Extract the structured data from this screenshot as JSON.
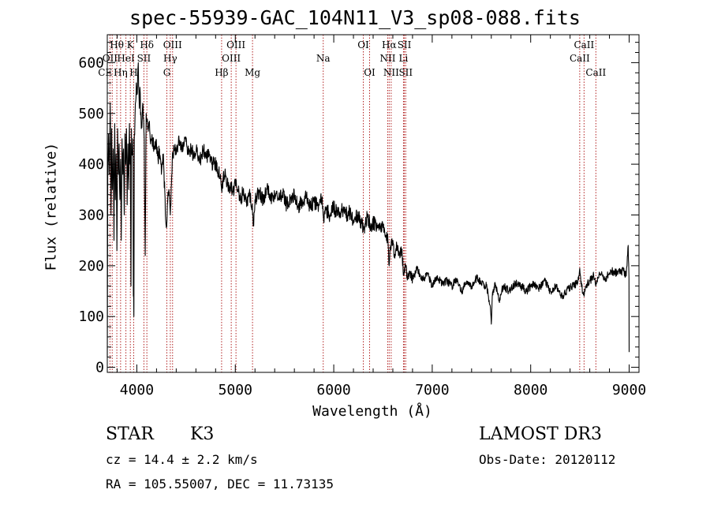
{
  "chart_data": {
    "type": "line",
    "title": "spec-55939-GAC_104N11_V3_sp08-088.fits",
    "xlabel": "Wavelength (Å)",
    "ylabel": "Flux (relative)",
    "xlim": [
      3700,
      9100
    ],
    "ylim": [
      -10,
      655
    ],
    "xticks": [
      4000,
      5000,
      6000,
      7000,
      8000,
      9000
    ],
    "yticks": [
      0,
      100,
      200,
      300,
      400,
      500,
      600
    ],
    "line_color": "#000000",
    "marker_color": "#b22222",
    "spectrum_anchors": [
      [
        3700,
        20
      ],
      [
        3705,
        400
      ],
      [
        3712,
        460
      ],
      [
        3720,
        380
      ],
      [
        3730,
        520
      ],
      [
        3738,
        300
      ],
      [
        3745,
        470
      ],
      [
        3752,
        350
      ],
      [
        3760,
        430
      ],
      [
        3768,
        250
      ],
      [
        3775,
        480
      ],
      [
        3782,
        330
      ],
      [
        3790,
        420
      ],
      [
        3798,
        230
      ],
      [
        3805,
        470
      ],
      [
        3812,
        380
      ],
      [
        3820,
        440
      ],
      [
        3828,
        330
      ],
      [
        3835,
        410
      ],
      [
        3842,
        250
      ],
      [
        3850,
        450
      ],
      [
        3858,
        380
      ],
      [
        3865,
        430
      ],
      [
        3872,
        300
      ],
      [
        3880,
        460
      ],
      [
        3888,
        400
      ],
      [
        3895,
        470
      ],
      [
        3902,
        320
      ],
      [
        3910,
        440
      ],
      [
        3918,
        350
      ],
      [
        3925,
        480
      ],
      [
        3930,
        400
      ],
      [
        3935,
        440
      ],
      [
        3940,
        160
      ],
      [
        3945,
        470
      ],
      [
        3950,
        420
      ],
      [
        3960,
        450
      ],
      [
        3965,
        140
      ],
      [
        3970,
        100
      ],
      [
        3975,
        460
      ],
      [
        3985,
        520
      ],
      [
        3995,
        560
      ],
      [
        4005,
        540
      ],
      [
        4015,
        600
      ],
      [
        4025,
        510
      ],
      [
        4035,
        540
      ],
      [
        4045,
        470
      ],
      [
        4060,
        520
      ],
      [
        4075,
        450
      ],
      [
        4085,
        220
      ],
      [
        4095,
        500
      ],
      [
        4110,
        470
      ],
      [
        4125,
        480
      ],
      [
        4140,
        440
      ],
      [
        4160,
        450
      ],
      [
        4180,
        430
      ],
      [
        4200,
        440
      ],
      [
        4215,
        410
      ],
      [
        4230,
        430
      ],
      [
        4250,
        380
      ],
      [
        4270,
        420
      ],
      [
        4290,
        300
      ],
      [
        4300,
        275
      ],
      [
        4310,
        320
      ],
      [
        4325,
        350
      ],
      [
        4340,
        300
      ],
      [
        4360,
        410
      ],
      [
        4380,
        430
      ],
      [
        4400,
        420
      ],
      [
        4430,
        445
      ],
      [
        4460,
        430
      ],
      [
        4490,
        450
      ],
      [
        4520,
        420
      ],
      [
        4550,
        430
      ],
      [
        4580,
        415
      ],
      [
        4610,
        425
      ],
      [
        4640,
        405
      ],
      [
        4670,
        430
      ],
      [
        4700,
        420
      ],
      [
        4730,
        415
      ],
      [
        4760,
        400
      ],
      [
        4790,
        405
      ],
      [
        4820,
        390
      ],
      [
        4850,
        380
      ],
      [
        4861,
        350
      ],
      [
        4875,
        370
      ],
      [
        4900,
        380
      ],
      [
        4925,
        360
      ],
      [
        4950,
        355
      ],
      [
        4975,
        345
      ],
      [
        5000,
        365
      ],
      [
        5025,
        350
      ],
      [
        5050,
        330
      ],
      [
        5080,
        345
      ],
      [
        5110,
        325
      ],
      [
        5140,
        340
      ],
      [
        5170,
        320
      ],
      [
        5184,
        278
      ],
      [
        5200,
        330
      ],
      [
        5240,
        345
      ],
      [
        5280,
        330
      ],
      [
        5320,
        350
      ],
      [
        5360,
        335
      ],
      [
        5400,
        340
      ],
      [
        5440,
        330
      ],
      [
        5480,
        345
      ],
      [
        5520,
        320
      ],
      [
        5560,
        330
      ],
      [
        5600,
        340
      ],
      [
        5640,
        315
      ],
      [
        5680,
        330
      ],
      [
        5720,
        335
      ],
      [
        5760,
        315
      ],
      [
        5800,
        325
      ],
      [
        5840,
        320
      ],
      [
        5880,
        330
      ],
      [
        5895,
        295
      ],
      [
        5920,
        310
      ],
      [
        5960,
        300
      ],
      [
        6000,
        315
      ],
      [
        6040,
        300
      ],
      [
        6080,
        310
      ],
      [
        6120,
        300
      ],
      [
        6160,
        305
      ],
      [
        6200,
        290
      ],
      [
        6240,
        300
      ],
      [
        6280,
        285
      ],
      [
        6300,
        270
      ],
      [
        6340,
        295
      ],
      [
        6380,
        280
      ],
      [
        6420,
        285
      ],
      [
        6460,
        270
      ],
      [
        6500,
        275
      ],
      [
        6530,
        260
      ],
      [
        6550,
        250
      ],
      [
        6563,
        200
      ],
      [
        6575,
        235
      ],
      [
        6600,
        250
      ],
      [
        6620,
        215
      ],
      [
        6640,
        240
      ],
      [
        6660,
        220
      ],
      [
        6690,
        230
      ],
      [
        6710,
        185
      ],
      [
        6730,
        200
      ],
      [
        6750,
        175
      ],
      [
        6770,
        185
      ],
      [
        6800,
        175
      ],
      [
        6850,
        195
      ],
      [
        6900,
        170
      ],
      [
        6950,
        185
      ],
      [
        7000,
        160
      ],
      [
        7050,
        180
      ],
      [
        7100,
        165
      ],
      [
        7150,
        170
      ],
      [
        7200,
        160
      ],
      [
        7250,
        175
      ],
      [
        7300,
        150
      ],
      [
        7350,
        170
      ],
      [
        7400,
        160
      ],
      [
        7450,
        175
      ],
      [
        7500,
        165
      ],
      [
        7550,
        160
      ],
      [
        7590,
        120
      ],
      [
        7600,
        85
      ],
      [
        7610,
        140
      ],
      [
        7640,
        165
      ],
      [
        7680,
        130
      ],
      [
        7720,
        160
      ],
      [
        7780,
        150
      ],
      [
        7840,
        165
      ],
      [
        7900,
        160
      ],
      [
        7960,
        150
      ],
      [
        8020,
        165
      ],
      [
        8080,
        155
      ],
      [
        8140,
        170
      ],
      [
        8200,
        150
      ],
      [
        8260,
        160
      ],
      [
        8320,
        140
      ],
      [
        8380,
        155
      ],
      [
        8440,
        160
      ],
      [
        8480,
        170
      ],
      [
        8498,
        195
      ],
      [
        8510,
        165
      ],
      [
        8542,
        140
      ],
      [
        8560,
        160
      ],
      [
        8600,
        170
      ],
      [
        8640,
        180
      ],
      [
        8662,
        160
      ],
      [
        8700,
        185
      ],
      [
        8760,
        175
      ],
      [
        8820,
        190
      ],
      [
        8880,
        185
      ],
      [
        8940,
        190
      ],
      [
        8970,
        180
      ],
      [
        8990,
        240
      ],
      [
        8998,
        175
      ],
      [
        9000,
        30
      ]
    ],
    "lines": [
      {
        "label": "Hθ",
        "wl": 3797,
        "row": 1,
        "align": "center"
      },
      {
        "label": "K",
        "wl": 3934,
        "row": 1,
        "align": "center"
      },
      {
        "label": "Hδ",
        "wl": 4102,
        "row": 1,
        "align": "center"
      },
      {
        "label": "OIII",
        "wl": 4363,
        "row": 1,
        "align": "center"
      },
      {
        "label": "OIII",
        "wl": 5007,
        "row": 1,
        "align": "center"
      },
      {
        "label": "OI",
        "wl": 6300,
        "row": 1,
        "align": "center"
      },
      {
        "label": "Hα",
        "wl": 6563,
        "row": 1,
        "align": "center"
      },
      {
        "label": "SII",
        "wl": 6717,
        "row": 1,
        "align": "center"
      },
      {
        "label": "CaII",
        "wl": 8542,
        "row": 1,
        "align": "center"
      },
      {
        "label": "OII",
        "wl": 3727,
        "row": 2,
        "align": "center"
      },
      {
        "label": "HeI",
        "wl": 3889,
        "row": 2,
        "align": "center"
      },
      {
        "label": "SII",
        "wl": 4072,
        "row": 2,
        "align": "center"
      },
      {
        "label": "Hγ",
        "wl": 4340,
        "row": 2,
        "align": "center"
      },
      {
        "label": "OIII",
        "wl": 4959,
        "row": 2,
        "align": "center"
      },
      {
        "label": "Na",
        "wl": 5893,
        "row": 2,
        "align": "center"
      },
      {
        "label": "NII",
        "wl": 6548,
        "row": 2,
        "align": "center"
      },
      {
        "label": "Li",
        "wl": 6708,
        "row": 2,
        "align": "center"
      },
      {
        "label": "CaII",
        "wl": 8498,
        "row": 2,
        "align": "center"
      },
      {
        "label": "CE",
        "wl": 3750,
        "row": 3,
        "align": "right"
      },
      {
        "label": "Hη",
        "wl": 3835,
        "row": 3,
        "align": "center"
      },
      {
        "label": "H",
        "wl": 3968,
        "row": 3,
        "align": "center"
      },
      {
        "label": "G",
        "wl": 4305,
        "row": 3,
        "align": "center"
      },
      {
        "label": "Hβ",
        "wl": 4861,
        "row": 3,
        "align": "center"
      },
      {
        "label": "Mg",
        "wl": 5175,
        "row": 3,
        "align": "center"
      },
      {
        "label": "OI",
        "wl": 6364,
        "row": 3,
        "align": "center"
      },
      {
        "label": "NII",
        "wl": 6583,
        "row": 3,
        "align": "center"
      },
      {
        "label": "SII",
        "wl": 6731,
        "row": 3,
        "align": "center"
      },
      {
        "label": "CaII",
        "wl": 8662,
        "row": 3,
        "align": "center"
      }
    ]
  },
  "info": {
    "object_class": "STAR",
    "subclass": "K3",
    "survey": "LAMOST DR3",
    "cz_text": "cz = 14.4 ± 2.2 km/s",
    "obs_date_text": "Obs-Date: 20120112",
    "coords_text": "RA = 105.55007, DEC =  11.73135"
  }
}
